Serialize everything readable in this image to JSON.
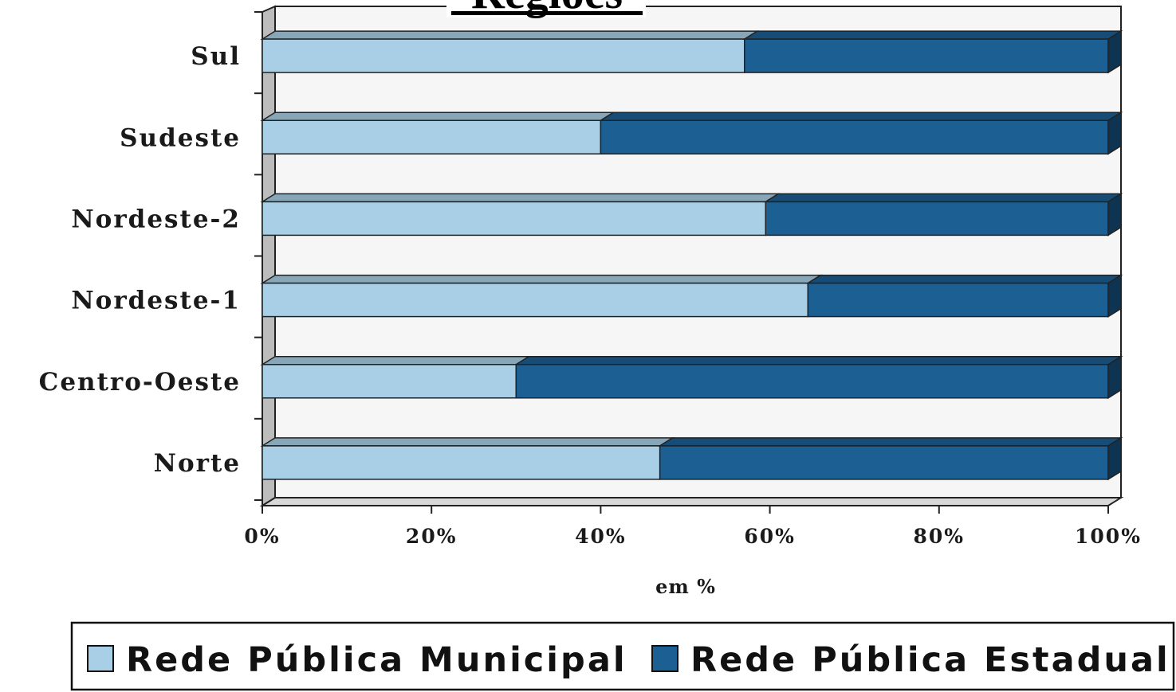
{
  "chart_data": {
    "type": "bar",
    "orientation": "horizontal",
    "stacked": true,
    "title": "Regiões",
    "xlabel": "em %",
    "ylabel": "",
    "xlim": [
      0,
      100
    ],
    "categories": [
      "Norte",
      "Centro-Oeste",
      "Nordeste-1",
      "Nordeste-2",
      "Sudeste",
      "Sul"
    ],
    "x_ticks": [
      "0%",
      "20%",
      "40%",
      "60%",
      "80%",
      "100%"
    ],
    "series": [
      {
        "name": "Rede Pública Municipal",
        "color": "#a9cfe6",
        "values": [
          47,
          30,
          64.5,
          59.5,
          40,
          57
        ]
      },
      {
        "name": "Rede Pública Estadual",
        "color": "#1b5f93",
        "values": [
          53,
          70,
          35.5,
          40.5,
          60,
          43
        ]
      }
    ],
    "grid": false,
    "legend_position": "bottom"
  }
}
